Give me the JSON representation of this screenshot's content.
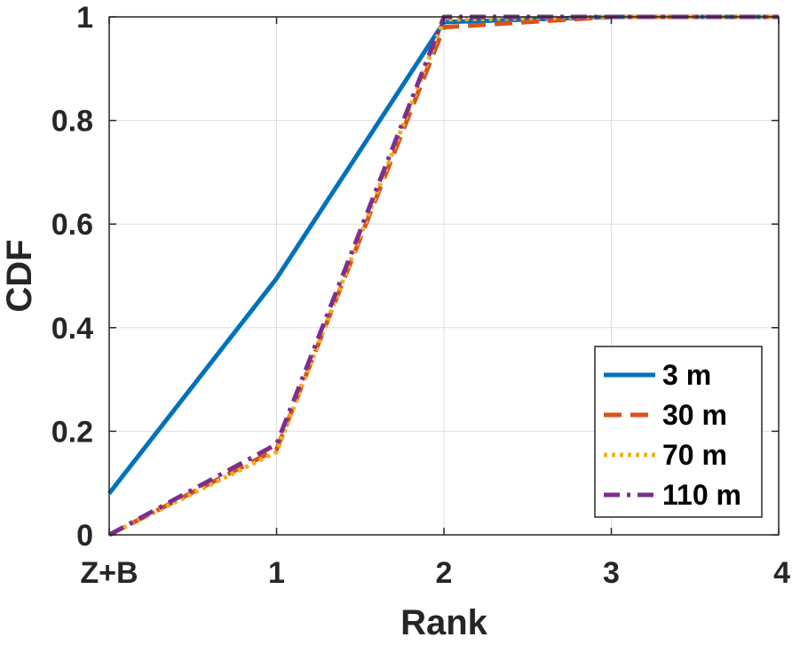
{
  "chart_data": {
    "type": "line",
    "xlabel": "Rank",
    "ylabel": "CDF",
    "x_ticks": [
      {
        "value": 0,
        "label": "Z+B"
      },
      {
        "value": 1,
        "label": "1"
      },
      {
        "value": 2,
        "label": "2"
      },
      {
        "value": 3,
        "label": "3"
      },
      {
        "value": 4,
        "label": "4"
      }
    ],
    "y_ticks": [
      {
        "value": 0,
        "label": "0"
      },
      {
        "value": 0.2,
        "label": "0.2"
      },
      {
        "value": 0.4,
        "label": "0.4"
      },
      {
        "value": 0.6,
        "label": "0.6"
      },
      {
        "value": 0.8,
        "label": "0.8"
      },
      {
        "value": 1,
        "label": "1"
      }
    ],
    "xlim": [
      0,
      4
    ],
    "ylim": [
      0,
      1
    ],
    "grid": true,
    "legend_position": "bottom-right",
    "x": [
      0,
      1,
      2,
      3,
      4
    ],
    "series": [
      {
        "name": "3 m",
        "values": [
          0.08,
          0.495,
          0.99,
          1.0,
          1.0
        ],
        "color": "#0072BD",
        "style": "solid"
      },
      {
        "name": "30 m",
        "values": [
          0.0,
          0.165,
          0.98,
          1.0,
          1.0
        ],
        "color": "#D95319",
        "style": "dashed"
      },
      {
        "name": "70 m",
        "values": [
          0.0,
          0.16,
          0.995,
          1.0,
          1.0
        ],
        "color": "#EDB120",
        "style": "dotted"
      },
      {
        "name": "110 m",
        "values": [
          0.0,
          0.175,
          1.0,
          1.0,
          1.0
        ],
        "color": "#7E2F8E",
        "style": "dashdot"
      }
    ]
  }
}
